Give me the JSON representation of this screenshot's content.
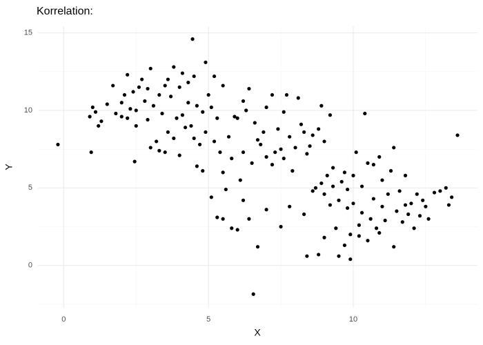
{
  "chart_data": {
    "type": "scatter",
    "title": "Korrelation:",
    "x_label": "X",
    "y_label": "Y",
    "color": "#000000",
    "xlim": [
      -0.89,
      14.29
    ],
    "ylim": [
      -2.73,
      15.43
    ],
    "xticks": [
      0,
      5,
      10
    ],
    "yticks": [
      0,
      5,
      10,
      15
    ],
    "x_minor_grid": [
      2.5,
      7.5,
      12.5
    ],
    "y_minor_grid": [
      -2.5,
      2.5,
      7.5,
      12.5
    ],
    "grid": true,
    "x": [
      0.9,
      1.0,
      1.1,
      1.2,
      1.3,
      1.7,
      1.8,
      2.0,
      2.1,
      2.2,
      2.2,
      2.3,
      2.4,
      2.5,
      2.5,
      2.6,
      2.7,
      2.8,
      2.9,
      2.9,
      3.0,
      3.1,
      3.0,
      3.2,
      3.3,
      3.4,
      3.5,
      3.5,
      3.6,
      3.7,
      3.8,
      3.8,
      3.9,
      4.0,
      4.0,
      4.1,
      4.2,
      4.3,
      4.3,
      4.4,
      4.5,
      4.5,
      4.6,
      4.7,
      4.8,
      4.9,
      4.9,
      5.0,
      4.6,
      4.8,
      3.3,
      2.0,
      1.5,
      3.6,
      4.1,
      5.1,
      5.2,
      5.2,
      5.3,
      5.4,
      5.5,
      5.5,
      5.6,
      5.7,
      5.8,
      6.0,
      6.1,
      6.2,
      6.2,
      6.3,
      6.4,
      6.5,
      6.6,
      6.7,
      6.8,
      7.0,
      7.0,
      7.2,
      7.2,
      7.4,
      7.5,
      7.6,
      7.6,
      7.7,
      7.8,
      7.9,
      8.0,
      8.1,
      8.2,
      8.3,
      8.5,
      8.6,
      8.8,
      8.9,
      9.0,
      9.2,
      5.9,
      6.9,
      7.3,
      8.4,
      5.5,
      6.0,
      5.8,
      6.7,
      6.2,
      6.4,
      7.0,
      7.5,
      7.8,
      8.3,
      8.4,
      8.8,
      8.6,
      8.7,
      8.9,
      9.0,
      9.1,
      9.2,
      9.3,
      9.3,
      9.4,
      9.5,
      9.6,
      9.7,
      9.7,
      9.8,
      9.9,
      10.0,
      10.0,
      10.1,
      10.2,
      10.3,
      10.3,
      10.4,
      10.5,
      10.5,
      10.6,
      10.7,
      10.7,
      10.8,
      10.9,
      11.0,
      11.0,
      11.1,
      11.2,
      11.3,
      11.4,
      11.4,
      11.5,
      11.6,
      11.7,
      11.8,
      11.9,
      12.0,
      12.1,
      12.2,
      12.3,
      12.5,
      12.6,
      12.8,
      13.0,
      13.2,
      13.3,
      13.4,
      13.6,
      9.5,
      9.9,
      9.0,
      10.2,
      12.4,
      11.8,
      10.9,
      9.8,
      -0.2,
      0.95,
      4.45,
      6.55,
      2.45,
      5.1,
      5.3
    ],
    "values": [
      9.6,
      10.2,
      9.9,
      9.0,
      9.3,
      11.6,
      9.8,
      10.5,
      11.0,
      9.5,
      12.3,
      10.1,
      11.2,
      9.0,
      10.0,
      11.5,
      12.0,
      10.6,
      9.4,
      11.4,
      12.7,
      10.3,
      7.6,
      8.0,
      11.0,
      9.8,
      7.3,
      11.6,
      12.0,
      10.9,
      8.2,
      12.8,
      9.5,
      11.5,
      7.1,
      12.4,
      8.9,
      10.5,
      11.8,
      9.0,
      8.2,
      12.2,
      10.3,
      7.8,
      9.9,
      8.6,
      13.1,
      11.0,
      6.4,
      6.1,
      7.4,
      9.6,
      10.4,
      8.6,
      9.7,
      10.2,
      12.2,
      8.0,
      9.5,
      7.3,
      11.6,
      6.0,
      4.9,
      8.3,
      6.9,
      9.5,
      5.5,
      10.6,
      7.3,
      10.0,
      11.4,
      6.6,
      9.2,
      8.1,
      7.8,
      7.0,
      10.2,
      11.0,
      6.5,
      8.8,
      7.5,
      9.9,
      6.9,
      11.0,
      8.3,
      6.1,
      7.6,
      10.8,
      9.1,
      8.6,
      7.7,
      8.4,
      8.8,
      10.3,
      8.0,
      9.7,
      9.6,
      8.6,
      7.3,
      7.2,
      3.0,
      2.3,
      2.4,
      1.2,
      4.2,
      3.0,
      3.6,
      2.5,
      3.8,
      3.3,
      0.6,
      0.7,
      4.8,
      5.0,
      5.3,
      4.6,
      5.8,
      3.9,
      6.3,
      5.1,
      2.4,
      4.2,
      5.4,
      1.3,
      6.0,
      3.7,
      2.0,
      5.8,
      4.0,
      7.3,
      2.6,
      3.4,
      5.1,
      9.8,
      6.6,
      1.6,
      3.0,
      4.3,
      6.5,
      2.4,
      7.0,
      3.8,
      5.5,
      2.9,
      4.6,
      6.1,
      1.2,
      7.6,
      3.5,
      4.8,
      2.8,
      5.8,
      3.3,
      4.0,
      2.4,
      4.6,
      3.2,
      3.8,
      3.0,
      4.7,
      4.8,
      5.0,
      3.9,
      4.4,
      8.4,
      0.6,
      0.4,
      1.8,
      1.9,
      4.2,
      3.9,
      2.1,
      4.9,
      7.8,
      7.3,
      14.6,
      -1.85,
      6.7,
      4.4,
      3.1
    ]
  }
}
